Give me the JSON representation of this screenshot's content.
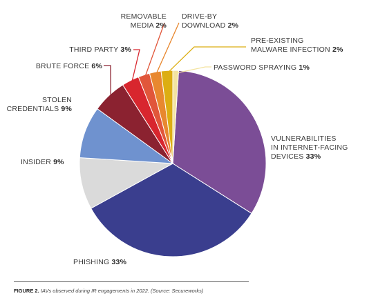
{
  "chart_data": {
    "type": "pie",
    "title": "",
    "slices": [
      {
        "label_lines": [
          "VULNERABILITIES",
          "IN INTERNET-FACING",
          "DEVICES"
        ],
        "pct_text": "33%",
        "value": 33,
        "color": "#7b4d96"
      },
      {
        "label_lines": [
          "PHISHING"
        ],
        "pct_text": "33%",
        "value": 33,
        "color": "#3a3e8e"
      },
      {
        "label_lines": [
          "INSIDER"
        ],
        "pct_text": "9%",
        "value": 9,
        "color": "#dadada"
      },
      {
        "label_lines": [
          "STOLEN",
          "CREDENTIALS"
        ],
        "pct_text": "9%",
        "value": 9,
        "color": "#6f92cf"
      },
      {
        "label_lines": [
          "BRUTE FORCE"
        ],
        "pct_text": "6%",
        "value": 6,
        "color": "#8b2230"
      },
      {
        "label_lines": [
          "THIRD PARTY"
        ],
        "pct_text": "3%",
        "value": 3,
        "color": "#d8262e"
      },
      {
        "label_lines": [
          "REMOVABLE",
          "MEDIA"
        ],
        "pct_text": "2%",
        "value": 2,
        "color": "#e1563a"
      },
      {
        "label_lines": [
          "DRIVE-BY",
          "DOWNLOAD"
        ],
        "pct_text": "2%",
        "value": 2,
        "color": "#e8882f"
      },
      {
        "label_lines": [
          "PRE-EXISTING",
          "MALWARE INFECTION"
        ],
        "pct_text": "2%",
        "value": 2,
        "color": "#dcae12"
      },
      {
        "label_lines": [
          "PASSWORD SPRAYING"
        ],
        "pct_text": "1%",
        "value": 1,
        "color": "#f3e3a0"
      }
    ]
  },
  "caption": {
    "prefix": "FIGURE 2.",
    "text": "IAVs observed during IR engagements in 2022. (Source: Secureworks)"
  }
}
